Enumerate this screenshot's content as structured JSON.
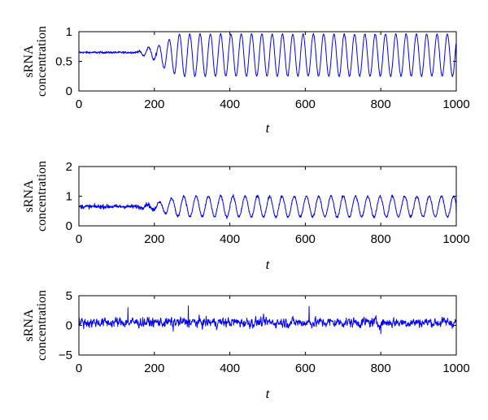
{
  "chart_data": [
    {
      "type": "line",
      "ylabel_line1": "sRNA",
      "ylabel_line2": "concentration",
      "xlabel": "t",
      "xlim": [
        0,
        1000
      ],
      "ylim": [
        0,
        1
      ],
      "xticks": [
        0,
        200,
        400,
        600,
        800,
        1000
      ],
      "yticks": [
        0,
        0.5,
        1
      ],
      "ytick_labels": [
        "0",
        "0.5",
        "1"
      ],
      "line_color": "#0000ff",
      "series": [
        {
          "x": [
            0,
            50,
            100,
            150,
            170,
            190,
            200,
            210,
            220,
            240,
            260,
            280,
            300,
            350,
            400,
            450,
            500,
            550,
            600,
            650,
            700,
            750,
            800,
            850,
            900,
            950,
            1000
          ],
          "y": [
            0.65,
            0.66,
            0.64,
            0.62,
            0.72,
            0.52,
            0.78,
            0.52,
            0.88,
            0.3,
            0.95,
            0.25,
            0.96,
            0.6,
            0.95,
            0.25,
            0.96,
            0.3,
            0.96,
            0.27,
            0.97,
            0.3,
            0.96,
            0.26,
            0.97,
            0.28,
            0.5
          ],
          "oscillation": {
            "start": 205,
            "period": 27.3,
            "min": 0.25,
            "max": 0.96,
            "noise": 0.02
          }
        }
      ]
    },
    {
      "type": "line",
      "ylabel_line1": "sRNA",
      "ylabel_line2": "concentration",
      "xlabel": "t",
      "xlim": [
        0,
        1000
      ],
      "ylim": [
        0,
        2
      ],
      "xticks": [
        0,
        200,
        400,
        600,
        800,
        1000
      ],
      "yticks": [
        0,
        1,
        2
      ],
      "ytick_labels": [
        "0",
        "1",
        "2"
      ],
      "line_color": "#0000ff",
      "series": [
        {
          "x": [
            0,
            50,
            100,
            150,
            200,
            210,
            240,
            270,
            300,
            400,
            500,
            600,
            700,
            800,
            900,
            1000
          ],
          "y": [
            0.65,
            0.7,
            0.62,
            0.6,
            0.7,
            1.0,
            0.3,
            1.0,
            0.3,
            1.0,
            0.35,
            1.05,
            0.3,
            1.0,
            0.3,
            0.4
          ],
          "oscillation": {
            "start": 205,
            "period": 32.5,
            "min": 0.3,
            "max": 1.0,
            "noise": 0.08
          }
        }
      ]
    },
    {
      "type": "line",
      "ylabel_line1": "sRNA",
      "ylabel_line2": "concentration",
      "xlabel": "t",
      "xlim": [
        0,
        1000
      ],
      "ylim": [
        -5,
        5
      ],
      "xticks": [
        0,
        200,
        400,
        600,
        800,
        1000
      ],
      "yticks": [
        -5,
        0,
        5
      ],
      "ytick_labels": [
        "−5",
        "0",
        "5"
      ],
      "line_color": "#0000ff",
      "series": [
        {
          "x": [
            0,
            100,
            130,
            200,
            250,
            290,
            400,
            500,
            610,
            700,
            800,
            900,
            1000
          ],
          "y": [
            0.8,
            0.6,
            3.0,
            0.4,
            -1.0,
            3.3,
            0.5,
            0.6,
            3.2,
            0.4,
            -1.4,
            0.5,
            0.3
          ],
          "noise": {
            "mean": 0.5,
            "amplitude": 1.2,
            "range": [
              -2.0,
              3.5
            ]
          }
        }
      ]
    }
  ]
}
